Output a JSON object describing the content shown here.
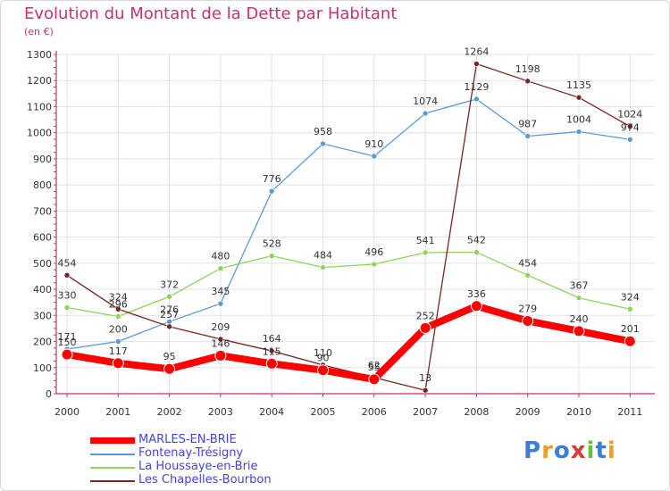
{
  "header": {
    "title": "Evolution du Montant de la Dette par Habitant",
    "subtitle": "(en €)"
  },
  "logo": {
    "text": "Proxiti",
    "colors": [
      "#3a7fd5",
      "#e9a020",
      "#3a7fd5",
      "#d93a3a",
      "#6abf3a",
      "#3a7fd5",
      "#e9a020"
    ]
  },
  "colors": {
    "title": "#c8336c",
    "axis": "#c8336c",
    "grid": "#dde3ec"
  },
  "chart_data": {
    "type": "line",
    "x": [
      "2000",
      "2001",
      "2002",
      "2003",
      "2004",
      "2005",
      "2006",
      "2007",
      "2008",
      "2009",
      "2010",
      "2011"
    ],
    "ylim": [
      0,
      1300
    ],
    "yticks": [
      0,
      100,
      200,
      300,
      400,
      500,
      600,
      700,
      800,
      900,
      1000,
      1100,
      1200,
      1300
    ],
    "grid": true,
    "legend_position": "bottom-left",
    "series": [
      {
        "name": "MARLES-EN-BRIE",
        "color": "#ff0000",
        "width": 8,
        "values": [
          150,
          117,
          95,
          146,
          115,
          90,
          55,
          252,
          336,
          279,
          240,
          201
        ]
      },
      {
        "name": "Fontenay-Trésigny",
        "color": "#5b9bd5",
        "width": 1.3,
        "values": [
          171,
          200,
          276,
          345,
          776,
          958,
          910,
          1074,
          1129,
          987,
          1004,
          974
        ]
      },
      {
        "name": "La Houssaye-en-Brie",
        "color": "#8fd45a",
        "width": 1.3,
        "values": [
          330,
          296,
          372,
          480,
          528,
          484,
          496,
          541,
          542,
          454,
          367,
          324
        ]
      },
      {
        "name": "Les Chapelles-Bourbon",
        "color": "#7a2424",
        "width": 1.3,
        "values": [
          454,
          324,
          257,
          209,
          164,
          110,
          62,
          13,
          1264,
          1198,
          1135,
          1024
        ]
      }
    ]
  }
}
